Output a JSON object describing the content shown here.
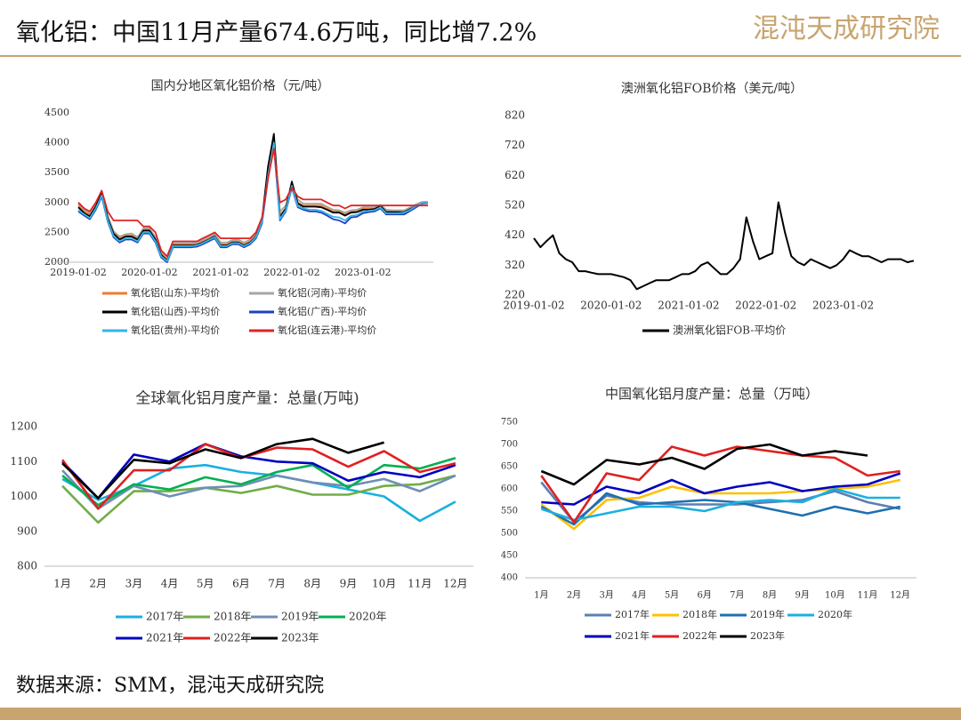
{
  "header": {
    "title": "氧化铝：中国11月产量674.6万吨，同比增7.2%",
    "logo": "混沌天成研究院"
  },
  "footer": {
    "source": "数据来源：SMM，混沌天成研究院"
  },
  "chart_data": [
    {
      "type": "line",
      "title": "国内分地区氧化铝价格（元/吨）",
      "x": [
        "2019-01-02",
        "2019-02-02",
        "2019-03-02",
        "2019-04-02",
        "2019-05-02",
        "2019-06-02",
        "2019-07-02",
        "2019-08-02",
        "2019-09-02",
        "2019-10-02",
        "2019-11-02",
        "2019-12-02",
        "2020-01-02",
        "2020-02-02",
        "2020-03-02",
        "2020-04-02",
        "2020-05-02",
        "2020-06-02",
        "2020-07-02",
        "2020-08-02",
        "2020-09-02",
        "2020-10-02",
        "2020-11-02",
        "2020-12-02",
        "2021-01-02",
        "2021-02-02",
        "2021-03-02",
        "2021-04-02",
        "2021-05-02",
        "2021-06-02",
        "2021-07-02",
        "2021-08-02",
        "2021-09-02",
        "2021-10-02",
        "2021-11-02",
        "2021-12-02",
        "2022-01-02",
        "2022-02-02",
        "2022-03-02",
        "2022-04-02",
        "2022-05-02",
        "2022-06-02",
        "2022-07-02",
        "2022-08-02",
        "2022-09-02",
        "2022-10-02",
        "2022-11-02",
        "2022-12-02",
        "2023-01-02",
        "2023-02-02",
        "2023-03-02",
        "2023-04-02",
        "2023-05-02",
        "2023-06-02",
        "2023-07-02",
        "2023-08-02",
        "2023-09-02",
        "2023-10-02",
        "2023-11-02",
        "2023-12-02"
      ],
      "xlim": [
        "2019-01-02",
        "2023-12-02"
      ],
      "xticks": [
        "2019-01-02",
        "2020-01-02",
        "2021-01-02",
        "2022-01-02",
        "2023-01-02"
      ],
      "ylim": [
        2000,
        4500
      ],
      "yticks": [
        2000,
        2500,
        3000,
        3500,
        4000,
        4500
      ],
      "series": [
        {
          "name": "氧化铝(山东)-平均价",
          "color": "#ed7d31",
          "values": [
            2950,
            2850,
            2800,
            2950,
            3150,
            2750,
            2500,
            2400,
            2450,
            2450,
            2400,
            2550,
            2550,
            2400,
            2150,
            2050,
            2300,
            2300,
            2300,
            2300,
            2300,
            2350,
            2400,
            2450,
            2300,
            2300,
            2350,
            2350,
            2300,
            2350,
            2450,
            2700,
            3500,
            4100,
            2800,
            2900,
            3300,
            3000,
            2950,
            2950,
            2950,
            2950,
            2900,
            2850,
            2850,
            2800,
            2850,
            2850,
            2900,
            2900,
            2900,
            2950,
            2850,
            2850,
            2850,
            2850,
            2900,
            2950,
            3000,
            3000
          ]
        },
        {
          "name": "氧化铝(河南)-平均价",
          "color": "#a5a5a5",
          "values": [
            2980,
            2880,
            2830,
            2980,
            3150,
            2780,
            2520,
            2430,
            2470,
            2480,
            2420,
            2570,
            2570,
            2420,
            2170,
            2080,
            2320,
            2320,
            2320,
            2320,
            2330,
            2370,
            2420,
            2470,
            2330,
            2330,
            2370,
            2380,
            2330,
            2380,
            2480,
            2720,
            3450,
            4050,
            2850,
            2950,
            3250,
            3050,
            2980,
            2980,
            2980,
            2980,
            2930,
            2880,
            2870,
            2830,
            2870,
            2880,
            2920,
            2920,
            2920,
            2960,
            2880,
            2870,
            2870,
            2870,
            2920,
            2970,
            3010,
            3010
          ]
        },
        {
          "name": "氧化铝(山西)-平均价",
          "color": "#000000",
          "values": [
            2920,
            2820,
            2770,
            2930,
            3180,
            2730,
            2480,
            2380,
            2430,
            2430,
            2380,
            2530,
            2530,
            2380,
            2120,
            2030,
            2280,
            2280,
            2280,
            2280,
            2290,
            2330,
            2380,
            2430,
            2280,
            2280,
            2330,
            2330,
            2280,
            2330,
            2430,
            2720,
            3600,
            4150,
            2750,
            2900,
            3350,
            2980,
            2930,
            2930,
            2930,
            2920,
            2880,
            2830,
            2830,
            2780,
            2830,
            2840,
            2880,
            2880,
            2890,
            2940,
            2840,
            2840,
            2840,
            2840,
            2890,
            2940,
            2990,
            3000
          ]
        },
        {
          "name": "氧化铝(广西)-平均价",
          "color": "#1f3fbf",
          "values": [
            2850,
            2780,
            2720,
            2880,
            3100,
            2680,
            2420,
            2330,
            2380,
            2380,
            2330,
            2480,
            2480,
            2330,
            2080,
            2000,
            2250,
            2250,
            2250,
            2250,
            2260,
            2300,
            2350,
            2400,
            2250,
            2250,
            2300,
            2300,
            2250,
            2300,
            2400,
            2650,
            3400,
            3950,
            2700,
            2850,
            3250,
            2920,
            2880,
            2850,
            2850,
            2830,
            2780,
            2720,
            2700,
            2650,
            2750,
            2760,
            2820,
            2840,
            2850,
            2900,
            2800,
            2800,
            2800,
            2800,
            2860,
            2920,
            2980,
            2990
          ]
        },
        {
          "name": "氧化铝(贵州)-平均价",
          "color": "#33b5e5",
          "values": [
            2870,
            2800,
            2740,
            2900,
            3120,
            2700,
            2440,
            2350,
            2400,
            2400,
            2350,
            2500,
            2500,
            2350,
            2100,
            2020,
            2270,
            2270,
            2270,
            2270,
            2280,
            2320,
            2370,
            2420,
            2270,
            2270,
            2320,
            2320,
            2270,
            2320,
            2420,
            2680,
            3450,
            4000,
            2720,
            2870,
            3280,
            2940,
            2900,
            2880,
            2880,
            2860,
            2810,
            2760,
            2750,
            2700,
            2780,
            2790,
            2850,
            2860,
            2870,
            2920,
            2820,
            2820,
            2820,
            2830,
            2880,
            2940,
            2990,
            3000
          ]
        },
        {
          "name": "氧化铝(连云港)-平均价",
          "color": "#e02424",
          "values": [
            3000,
            2900,
            2850,
            3000,
            3200,
            2850,
            2700,
            2700,
            2700,
            2700,
            2700,
            2600,
            2600,
            2500,
            2200,
            2100,
            2350,
            2350,
            2350,
            2350,
            2350,
            2400,
            2450,
            2500,
            2400,
            2400,
            2400,
            2400,
            2400,
            2400,
            2500,
            2750,
            3400,
            3900,
            3000,
            3050,
            3250,
            3100,
            3050,
            3050,
            3050,
            3050,
            3000,
            2950,
            2950,
            2900,
            2950,
            2950,
            2950,
            2950,
            2950,
            2950,
            2950,
            2950,
            2950,
            2950,
            2950,
            2950,
            2950,
            2950
          ]
        }
      ]
    },
    {
      "type": "line",
      "title": "澳洲氧化铝FOB价格（美元/吨）",
      "x": [
        "2019-01-02",
        "2019-02-02",
        "2019-03-02",
        "2019-04-02",
        "2019-05-02",
        "2019-06-02",
        "2019-07-02",
        "2019-08-02",
        "2019-09-02",
        "2019-10-02",
        "2019-11-02",
        "2019-12-02",
        "2020-01-02",
        "2020-02-02",
        "2020-03-02",
        "2020-04-02",
        "2020-05-02",
        "2020-06-02",
        "2020-07-02",
        "2020-08-02",
        "2020-09-02",
        "2020-10-02",
        "2020-11-02",
        "2020-12-02",
        "2021-01-02",
        "2021-02-02",
        "2021-03-02",
        "2021-04-02",
        "2021-05-02",
        "2021-06-02",
        "2021-07-02",
        "2021-08-02",
        "2021-09-02",
        "2021-10-02",
        "2021-11-02",
        "2021-12-02",
        "2022-01-02",
        "2022-02-02",
        "2022-03-02",
        "2022-04-02",
        "2022-05-02",
        "2022-06-02",
        "2022-07-02",
        "2022-08-02",
        "2022-09-02",
        "2022-10-02",
        "2022-11-02",
        "2022-12-02",
        "2023-01-02",
        "2023-02-02",
        "2023-03-02",
        "2023-04-02",
        "2023-05-02",
        "2023-06-02",
        "2023-07-02",
        "2023-08-02",
        "2023-09-02",
        "2023-10-02",
        "2023-11-02",
        "2023-12-02"
      ],
      "xlim": [
        "2019-01-02",
        "2023-12-02"
      ],
      "xticks": [
        "2019-01-02",
        "2020-01-02",
        "2021-01-02",
        "2022-01-02",
        "2023-01-02"
      ],
      "ylim": [
        220,
        820
      ],
      "yticks": [
        220,
        320,
        420,
        520,
        620,
        720,
        820
      ],
      "series": [
        {
          "name": "澳洲氧化铝FOB-平均价",
          "color": "#000000",
          "values": [
            410,
            380,
            400,
            420,
            360,
            340,
            330,
            300,
            300,
            295,
            290,
            290,
            290,
            285,
            280,
            270,
            240,
            250,
            260,
            270,
            270,
            270,
            280,
            290,
            290,
            300,
            320,
            330,
            310,
            290,
            290,
            310,
            340,
            480,
            400,
            340,
            350,
            360,
            530,
            430,
            350,
            330,
            320,
            340,
            330,
            320,
            310,
            320,
            340,
            370,
            360,
            350,
            350,
            340,
            330,
            340,
            340,
            340,
            330,
            335
          ]
        }
      ]
    },
    {
      "type": "line",
      "title": "全球氧化铝月度产量：总量(万吨)",
      "categories": [
        "1月",
        "2月",
        "3月",
        "4月",
        "5月",
        "6月",
        "7月",
        "8月",
        "9月",
        "10月",
        "11月",
        "12月"
      ],
      "ylim": [
        800,
        1200
      ],
      "yticks": [
        800,
        900,
        1000,
        1100,
        1200
      ],
      "series": [
        {
          "name": "2017年",
          "color": "#1ab0e0",
          "values": [
            1050,
            990,
            1030,
            1080,
            1090,
            1070,
            1060,
            1040,
            1020,
            1000,
            930,
            985
          ]
        },
        {
          "name": "2018年",
          "color": "#70ad47",
          "values": [
            1030,
            925,
            1015,
            1015,
            1025,
            1010,
            1030,
            1005,
            1005,
            1030,
            1035,
            1060
          ]
        },
        {
          "name": "2019年",
          "color": "#6f8fb5",
          "values": [
            1075,
            965,
            1030,
            1000,
            1025,
            1030,
            1060,
            1040,
            1030,
            1050,
            1015,
            1060
          ]
        },
        {
          "name": "2020年",
          "color": "#00b050",
          "values": [
            1060,
            975,
            1035,
            1020,
            1055,
            1035,
            1070,
            1090,
            1025,
            1090,
            1080,
            1110
          ]
        },
        {
          "name": "2021年",
          "color": "#0000c0",
          "values": [
            1100,
            995,
            1120,
            1100,
            1150,
            1115,
            1100,
            1095,
            1045,
            1070,
            1055,
            1090
          ]
        },
        {
          "name": "2022年",
          "color": "#e02020",
          "values": [
            1105,
            965,
            1075,
            1075,
            1150,
            1110,
            1140,
            1135,
            1085,
            1130,
            1070,
            1095
          ]
        },
        {
          "name": "2023年",
          "color": "#000000",
          "values": [
            1095,
            995,
            1105,
            1095,
            1135,
            1110,
            1150,
            1165,
            1125,
            1155,
            null,
            null
          ]
        }
      ]
    },
    {
      "type": "line",
      "title": "中国氧化铝月度产量：总量（万吨）",
      "categories": [
        "1月",
        "2月",
        "3月",
        "4月",
        "5月",
        "6月",
        "7月",
        "8月",
        "9月",
        "10月",
        "11月",
        "12月"
      ],
      "ylim": [
        400,
        750
      ],
      "yticks": [
        400,
        450,
        500,
        550,
        600,
        650,
        700,
        750
      ],
      "series": [
        {
          "name": "2017年",
          "color": "#5b7fb5",
          "values": [
            615,
            525,
            585,
            570,
            565,
            565,
            565,
            570,
            575,
            595,
            570,
            555
          ]
        },
        {
          "name": "2018年",
          "color": "#ffc000",
          "values": [
            565,
            510,
            575,
            580,
            605,
            590,
            590,
            590,
            595,
            600,
            605,
            620
          ]
        },
        {
          "name": "2019年",
          "color": "#1f6fb0",
          "values": [
            560,
            520,
            590,
            565,
            570,
            575,
            570,
            555,
            540,
            560,
            545,
            560
          ]
        },
        {
          "name": "2020年",
          "color": "#1ab0e0",
          "values": [
            555,
            530,
            545,
            560,
            560,
            550,
            570,
            575,
            570,
            600,
            580,
            580
          ]
        },
        {
          "name": "2021年",
          "color": "#0000c0",
          "values": [
            570,
            565,
            605,
            590,
            620,
            590,
            605,
            615,
            595,
            605,
            610,
            635
          ]
        },
        {
          "name": "2022年",
          "color": "#e02020",
          "values": [
            630,
            525,
            635,
            620,
            695,
            675,
            695,
            685,
            675,
            670,
            630,
            640
          ]
        },
        {
          "name": "2023年",
          "color": "#000000",
          "values": [
            640,
            610,
            665,
            655,
            670,
            645,
            690,
            700,
            675,
            685,
            675,
            null
          ]
        }
      ]
    }
  ]
}
